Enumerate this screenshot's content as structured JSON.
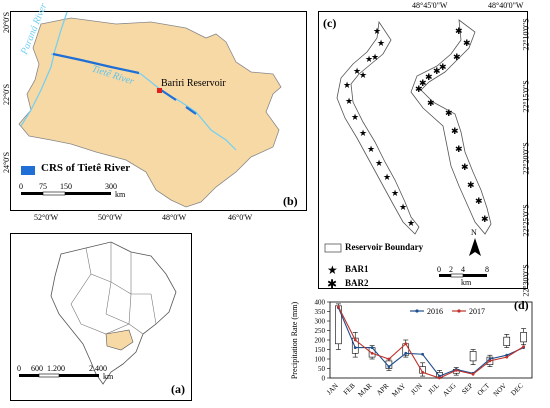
{
  "colors": {
    "state_fill": "#f7d9a6",
    "river_main": "#6fcff5",
    "crs_blue": "#1f6fd6",
    "reservoir_red": "#e0201b",
    "bar1": "#000000",
    "series_2016": "#1f4e8c",
    "series_2017": "#c0312b",
    "brazil_highlight": "#f7d9a6"
  },
  "panel_a": {
    "label": "(a)",
    "scale": {
      "ticks": [
        "0",
        "600",
        "1.200",
        "2.400"
      ],
      "unit": "km"
    }
  },
  "panel_b": {
    "label": "(b)",
    "lat_labels": [
      "20°0'S",
      "22°0'S",
      "24°0'S"
    ],
    "lon_labels": [
      "52°0'W",
      "50°0'W",
      "48°0'W",
      "46°0'W"
    ],
    "river_parana": "Paraná River",
    "river_tiete": "Tietê River",
    "reservoir": "Bariri Reservoir",
    "legend_crs": "CRS of Tietê River",
    "scale": {
      "ticks": [
        "0",
        "75",
        "150",
        "300"
      ],
      "unit": "km"
    }
  },
  "panel_c": {
    "label": "(c)",
    "lon_labels": [
      "48°45'0\"W",
      "48°40'0\"W"
    ],
    "lat_labels": [
      "22°10'0\"S",
      "22°15'0\"S",
      "22°20'0\"S",
      "22°25'0\"S",
      "22°30'0\"S"
    ],
    "legend": {
      "boundary": "Reservoir Boundary",
      "bar1": "BAR1",
      "bar2": "BAR2"
    },
    "north": "N",
    "scale": {
      "ticks": [
        "0",
        "2",
        "4",
        "8"
      ],
      "unit": "km"
    }
  },
  "panel_d": {
    "label": "(d)",
    "chart_data": {
      "type": "line",
      "ylabel": "Precipitation Rate (mm)",
      "xlabel": "",
      "ylim": [
        0,
        400
      ],
      "yticks": [
        "0",
        "50",
        "100",
        "150",
        "200",
        "250",
        "300",
        "350",
        "400"
      ],
      "categories": [
        "JAN",
        "FEB",
        "MAR",
        "APR",
        "MAY",
        "JUN",
        "JUL",
        "AUG",
        "SEP",
        "OCT",
        "NOV",
        "DEC"
      ],
      "series": [
        {
          "name": "2016",
          "values": [
            370,
            160,
            160,
            60,
            130,
            125,
            10,
            45,
            25,
            100,
            120,
            160
          ]
        },
        {
          "name": "2017",
          "values": [
            375,
            200,
            130,
            100,
            180,
            30,
            0,
            40,
            20,
            90,
            110,
            165
          ]
        }
      ],
      "boxes": [
        {
          "q1": 180,
          "q3": 380,
          "min": 150,
          "max": 390
        },
        {
          "q1": 130,
          "q3": 210,
          "min": 110,
          "max": 240
        },
        {
          "q1": 110,
          "q3": 160,
          "min": 100,
          "max": 170
        },
        {
          "q1": 50,
          "q3": 90,
          "min": 40,
          "max": 100
        },
        {
          "q1": 120,
          "q3": 180,
          "min": 110,
          "max": 200
        },
        {
          "q1": 25,
          "q3": 60,
          "min": 10,
          "max": 80
        },
        {
          "q1": 5,
          "q3": 30,
          "min": 0,
          "max": 40
        },
        {
          "q1": 25,
          "q3": 45,
          "min": 15,
          "max": 55
        },
        {
          "q1": 90,
          "q3": 140,
          "min": 70,
          "max": 150
        },
        {
          "q1": 70,
          "q3": 110,
          "min": 60,
          "max": 120
        },
        {
          "q1": 170,
          "q3": 215,
          "min": 160,
          "max": 230
        },
        {
          "q1": 190,
          "q3": 240,
          "min": 175,
          "max": 260
        }
      ]
    }
  }
}
